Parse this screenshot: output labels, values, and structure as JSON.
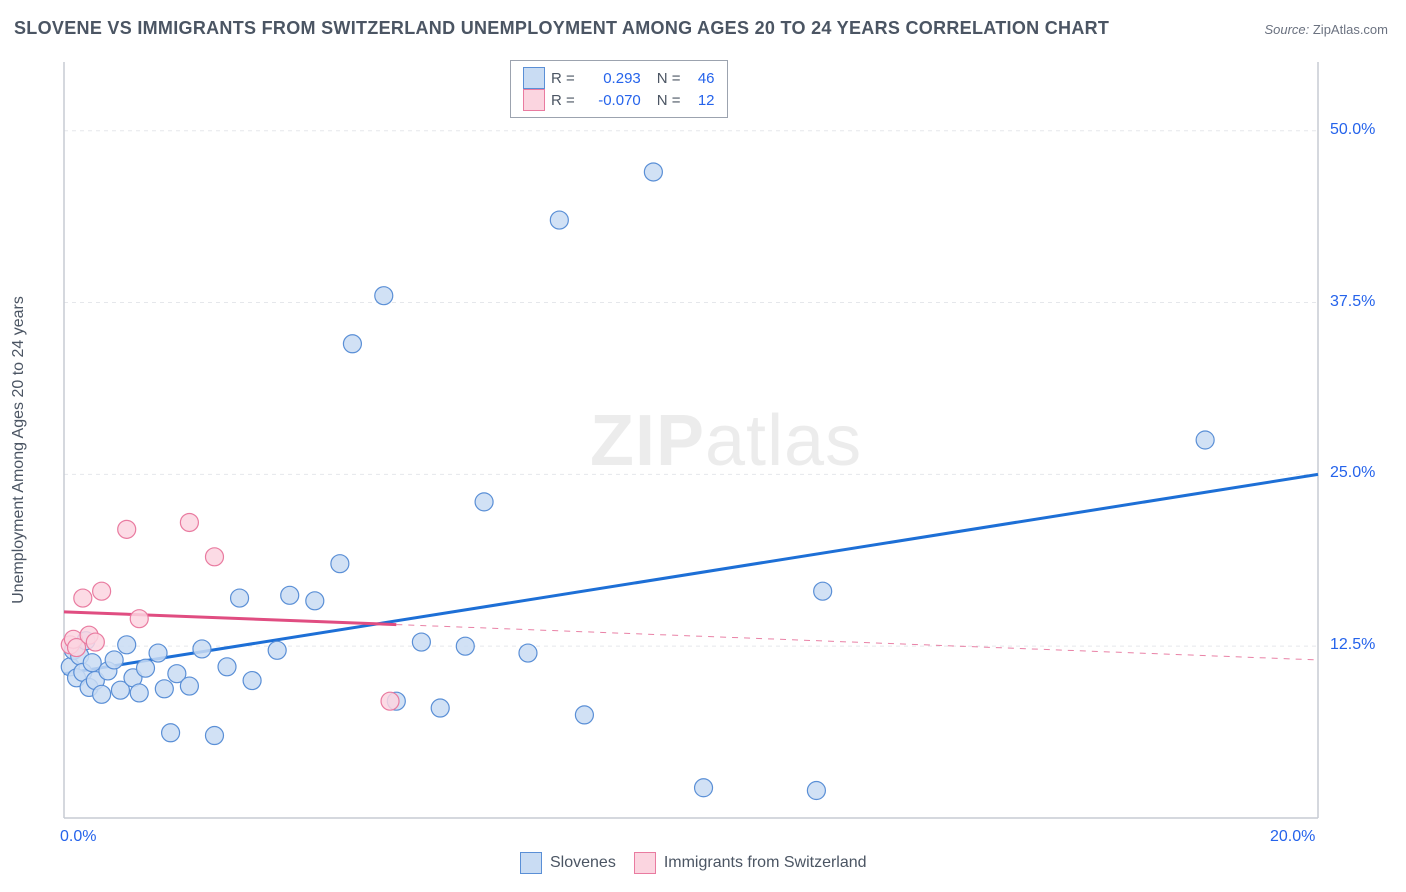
{
  "title": "SLOVENE VS IMMIGRANTS FROM SWITZERLAND UNEMPLOYMENT AMONG AGES 20 TO 24 YEARS CORRELATION CHART",
  "source_prefix": "Source: ",
  "source_name": "ZipAtlas.com",
  "yaxis_label": "Unemployment Among Ages 20 to 24 years",
  "watermark_bold": "ZIP",
  "watermark_thin": "atlas",
  "chart": {
    "type": "scatter-with-trend",
    "xlim": [
      0,
      20
    ],
    "ylim": [
      0,
      55
    ],
    "x_ticks": [
      {
        "v": 0,
        "label": "0.0%"
      },
      {
        "v": 20,
        "label": "20.0%"
      }
    ],
    "y_ticks": [
      {
        "v": 12.5,
        "label": "12.5%"
      },
      {
        "v": 25.0,
        "label": "25.0%"
      },
      {
        "v": 37.5,
        "label": "37.5%"
      },
      {
        "v": 50.0,
        "label": "50.0%"
      }
    ],
    "grid_color": "#e5e7eb",
    "axis_color": "#c7ccd4",
    "background_color": "#ffffff",
    "marker_radius": 9,
    "marker_stroke_width": 1.2,
    "trend_line_width": 3,
    "series": [
      {
        "name": "Slovenes",
        "fill": "#c9dcf3",
        "stroke": "#5a8fd6",
        "line_color": "#1d6fd6",
        "R": "0.293",
        "N": "46",
        "trend": {
          "x1": 0,
          "y1": 10.5,
          "x2": 20,
          "y2": 25.0,
          "dash_from_x": null
        },
        "points": [
          [
            0.1,
            11.0
          ],
          [
            0.15,
            12.2
          ],
          [
            0.2,
            10.2
          ],
          [
            0.25,
            11.8
          ],
          [
            0.3,
            10.6
          ],
          [
            0.35,
            12.9
          ],
          [
            0.4,
            9.5
          ],
          [
            0.45,
            11.3
          ],
          [
            0.5,
            10.0
          ],
          [
            0.6,
            9.0
          ],
          [
            0.7,
            10.7
          ],
          [
            0.8,
            11.5
          ],
          [
            0.9,
            9.3
          ],
          [
            1.0,
            12.6
          ],
          [
            1.1,
            10.2
          ],
          [
            1.2,
            9.1
          ],
          [
            1.3,
            10.9
          ],
          [
            1.5,
            12.0
          ],
          [
            1.6,
            9.4
          ],
          [
            1.7,
            6.2
          ],
          [
            1.8,
            10.5
          ],
          [
            2.0,
            9.6
          ],
          [
            2.2,
            12.3
          ],
          [
            2.4,
            6.0
          ],
          [
            2.6,
            11.0
          ],
          [
            2.8,
            16.0
          ],
          [
            3.0,
            10.0
          ],
          [
            3.4,
            12.2
          ],
          [
            3.6,
            16.2
          ],
          [
            4.0,
            15.8
          ],
          [
            4.4,
            18.5
          ],
          [
            4.6,
            34.5
          ],
          [
            5.1,
            38.0
          ],
          [
            5.3,
            8.5
          ],
          [
            5.7,
            12.8
          ],
          [
            6.0,
            8.0
          ],
          [
            6.4,
            12.5
          ],
          [
            6.7,
            23.0
          ],
          [
            7.4,
            12.0
          ],
          [
            7.9,
            43.5
          ],
          [
            8.3,
            7.5
          ],
          [
            9.4,
            47.0
          ],
          [
            10.2,
            2.2
          ],
          [
            12.0,
            2.0
          ],
          [
            12.1,
            16.5
          ],
          [
            18.2,
            27.5
          ]
        ]
      },
      {
        "name": "Immigrants from Switzerland",
        "fill": "#fbd5e0",
        "stroke": "#e97ba0",
        "line_color": "#e04d81",
        "R": "-0.070",
        "N": "12",
        "trend": {
          "x1": 0,
          "y1": 15.0,
          "x2": 20,
          "y2": 11.5,
          "dash_from_x": 5.3
        },
        "points": [
          [
            0.1,
            12.6
          ],
          [
            0.15,
            13.0
          ],
          [
            0.2,
            12.4
          ],
          [
            0.3,
            16.0
          ],
          [
            0.4,
            13.3
          ],
          [
            0.5,
            12.8
          ],
          [
            0.6,
            16.5
          ],
          [
            1.0,
            21.0
          ],
          [
            1.2,
            14.5
          ],
          [
            2.0,
            21.5
          ],
          [
            2.4,
            19.0
          ],
          [
            5.2,
            8.5
          ]
        ]
      }
    ],
    "legend_top": {
      "R_label": "R =",
      "N_label": "N ="
    },
    "legend_bottom": [
      {
        "swatch_fill": "#c9dcf3",
        "swatch_stroke": "#5a8fd6",
        "label": "Slovenes"
      },
      {
        "swatch_fill": "#fbd5e0",
        "swatch_stroke": "#e97ba0",
        "label": "Immigrants from Switzerland"
      }
    ]
  }
}
